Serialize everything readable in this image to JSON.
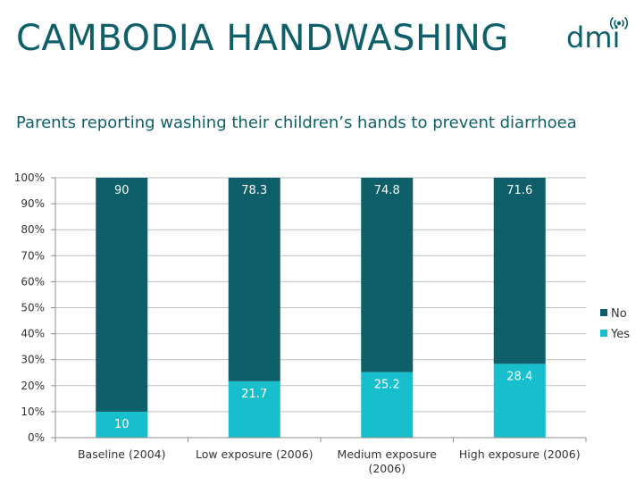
{
  "slide": {
    "title": "CAMBODIA HANDWASHING",
    "logo": "dmi"
  },
  "colors": {
    "title": "#0e5f69",
    "no": "#0e5f69",
    "yes": "#17bfcc",
    "grid": "#bfbfbf",
    "axis": "#8c8c8c"
  },
  "chart_data": {
    "type": "bar",
    "stacked": true,
    "title": "Parents reporting washing their children’s hands to prevent diarrhoea",
    "categories": [
      [
        "Baseline (2004)"
      ],
      [
        "Low exposure (2006)"
      ],
      [
        "Medium exposure",
        "(2006)"
      ],
      [
        "High exposure (2006)"
      ]
    ],
    "series": [
      {
        "name": "Yes",
        "values": [
          10,
          21.7,
          25.2,
          28.4
        ],
        "labels": [
          "10",
          "21.7",
          "25.2",
          "28.4"
        ]
      },
      {
        "name": "No",
        "values": [
          90,
          78.3,
          74.8,
          71.6
        ],
        "labels": [
          "90",
          "78.3",
          "74.8",
          "71.6"
        ]
      }
    ],
    "ylim": [
      0,
      100
    ],
    "y_ticks": [
      "0%",
      "10%",
      "20%",
      "30%",
      "40%",
      "50%",
      "60%",
      "70%",
      "80%",
      "90%",
      "100%"
    ],
    "grid": true,
    "legend": {
      "position": "right",
      "entries": [
        "No",
        "Yes"
      ]
    }
  }
}
